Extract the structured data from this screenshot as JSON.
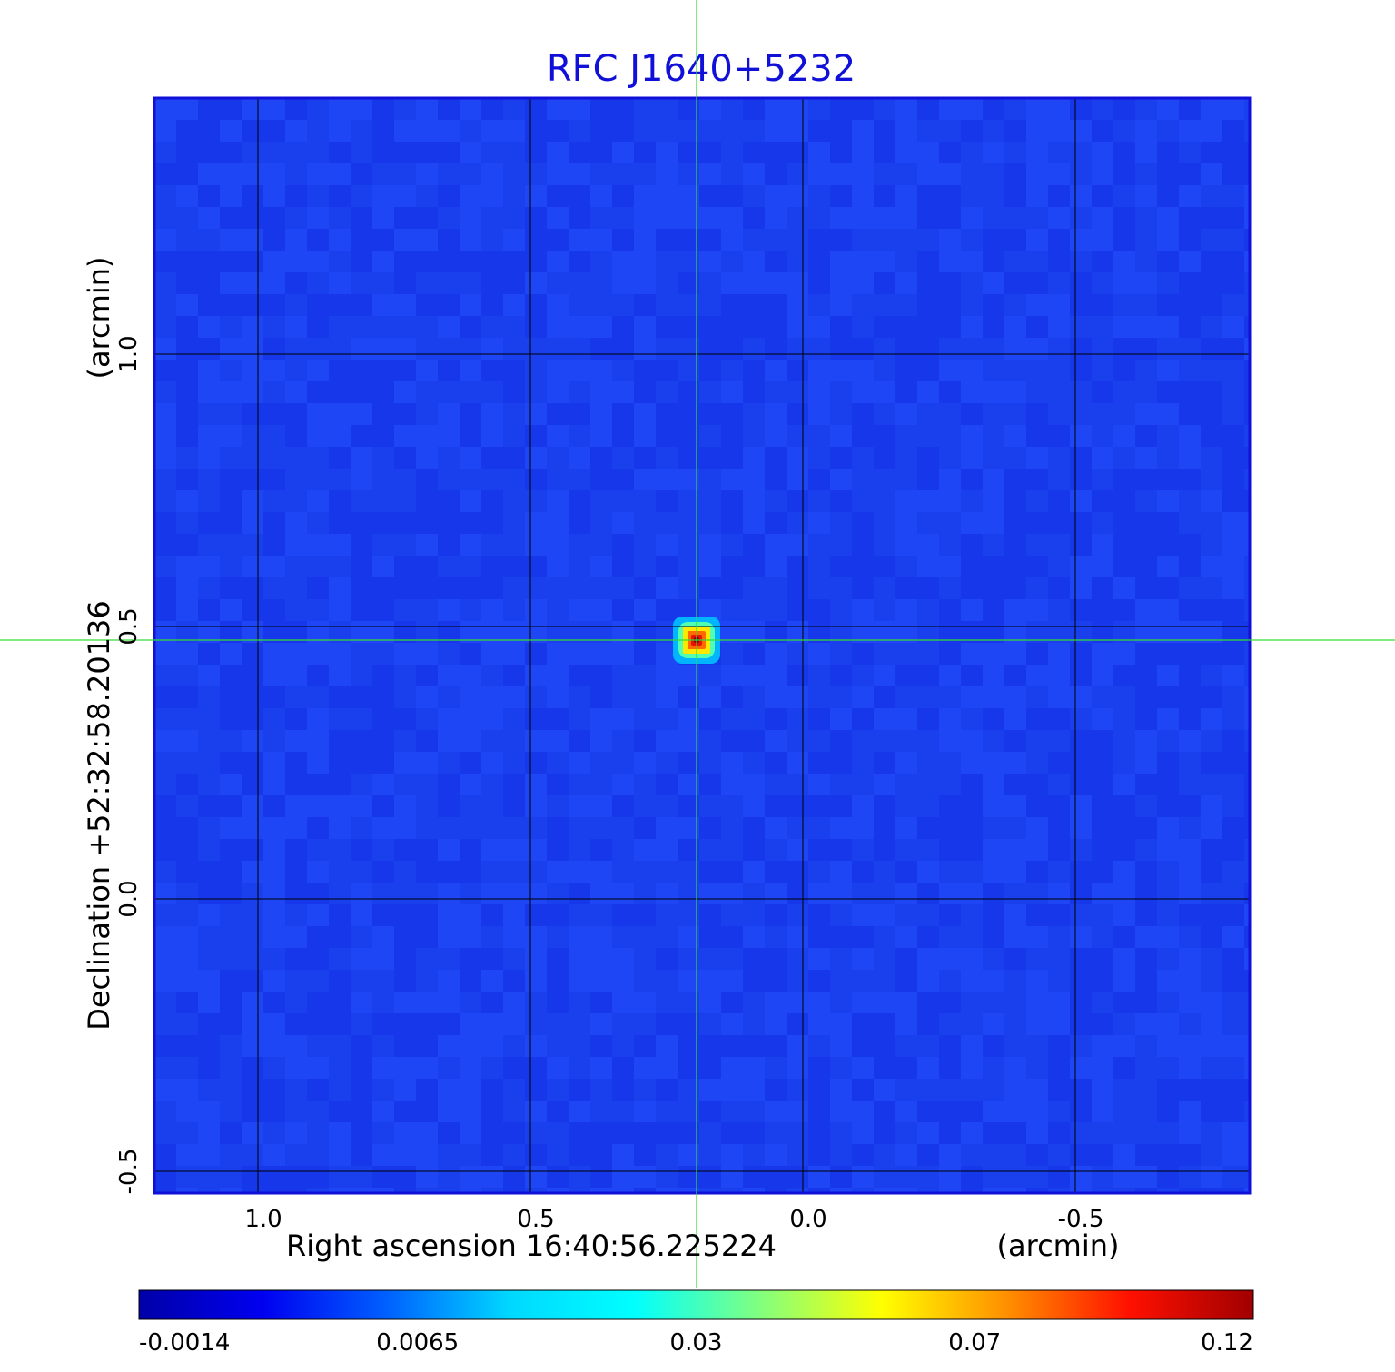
{
  "chart_data": {
    "type": "heatmap",
    "title": "RFC J1640+5232",
    "xlabel": "Right ascension  16:40:56.225224",
    "xunit": "(arcmin)",
    "ylabel": "Declination  +52:32:58.20136",
    "yunit": "(arcmin)",
    "x_ticks": [
      "1.0",
      "0.5",
      "0.0",
      "-0.5"
    ],
    "x_tick_values": [
      1.0,
      0.5,
      0.0,
      -0.5
    ],
    "y_ticks": [
      "1.0",
      "0.5",
      "0.0",
      "-0.5"
    ],
    "y_tick_values": [
      1.0,
      0.5,
      0.0,
      -0.5
    ],
    "xlim": [
      1.19,
      -0.82
    ],
    "ylim": [
      -0.54,
      1.47
    ],
    "grid": true,
    "crosshair": {
      "x": 0.195,
      "y": 0.475,
      "color": "#33dd33"
    },
    "source_peak": {
      "x": 0.195,
      "y": 0.475,
      "value": 0.12
    },
    "background_color": "#1a3ff0",
    "colorbar": {
      "ticks": [
        "-0.0014",
        "0.0065",
        "0.03",
        "0.07",
        "0.12"
      ],
      "colors": [
        "#0000a8",
        "#0000f0",
        "#0060ff",
        "#00d8ff",
        "#00ffff",
        "#80ff80",
        "#ffff00",
        "#ff9000",
        "#ff1000",
        "#a00000"
      ]
    }
  }
}
